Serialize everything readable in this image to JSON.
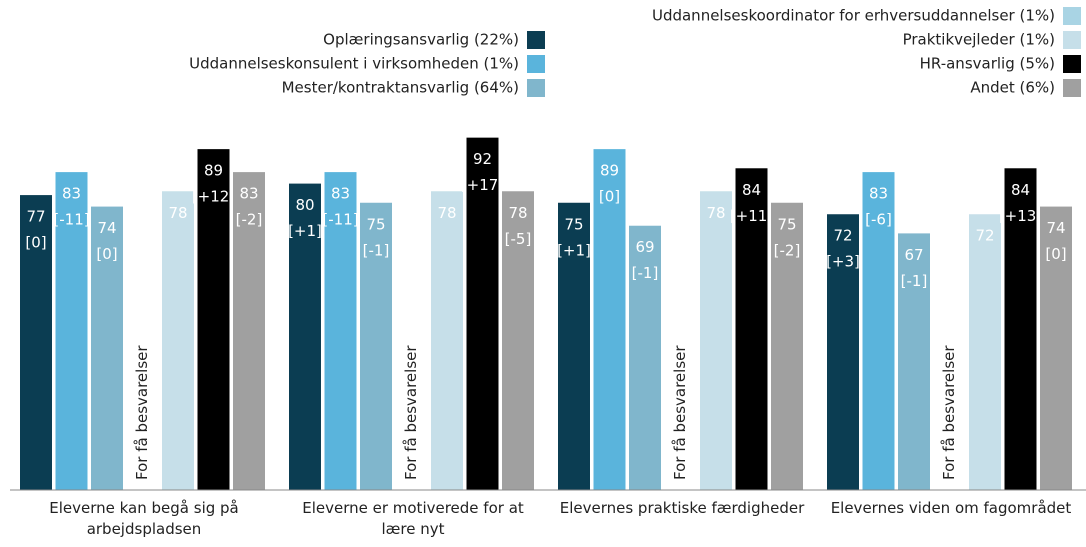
{
  "chart_data": {
    "type": "bar",
    "categories": [
      "Eleverne kan begå sig på arbejdspladsen",
      "Eleverne er motiverede for at lære nyt",
      "Elevernes praktiske færdigheder",
      "Elevernes viden om fagområdet"
    ],
    "null_label": "For få besvarelser",
    "ylim": [
      0,
      100
    ],
    "series": [
      {
        "name": "Oplæringsansvarlig (22%)",
        "color": "#0b3d52",
        "values": [
          77,
          80,
          75,
          72
        ],
        "change_labels": [
          "[0]",
          "[+1]",
          "[+1]",
          "[+3]"
        ]
      },
      {
        "name": "Uddannelseskonsulent i virksomheden (1%)",
        "color": "#5ab4dc",
        "values": [
          83,
          83,
          89,
          83
        ],
        "change_labels": [
          "[-11]",
          "[-11]",
          "[0]",
          "[-6]"
        ]
      },
      {
        "name": "Mester/kontraktansvarlig (64%)",
        "color": "#80b6cc",
        "values": [
          74,
          75,
          69,
          67
        ],
        "change_labels": [
          "[0]",
          "[-1]",
          "[-1]",
          "[-1]"
        ]
      },
      {
        "name": "Uddannelseskoordinator for erhversuddannelser (1%)",
        "color": "#a9d4e4",
        "values": [
          null,
          null,
          null,
          null
        ]
      },
      {
        "name": "Praktikvejleder (1%)",
        "color": "#c6dfe9",
        "values": [
          78,
          78,
          78,
          72
        ]
      },
      {
        "name": "HR-ansvarlig (5%)",
        "color": "#000000",
        "values": [
          89,
          92,
          84,
          84
        ],
        "change_labels": [
          "[+12]",
          "[+17]",
          "[+11]",
          "[+13]"
        ]
      },
      {
        "name": "Andet (6%)",
        "color": "#a0a0a0",
        "values": [
          83,
          78,
          75,
          74
        ],
        "change_labels": [
          "[-2]",
          "[-5]",
          "[-2]",
          "[0]"
        ]
      }
    ]
  }
}
